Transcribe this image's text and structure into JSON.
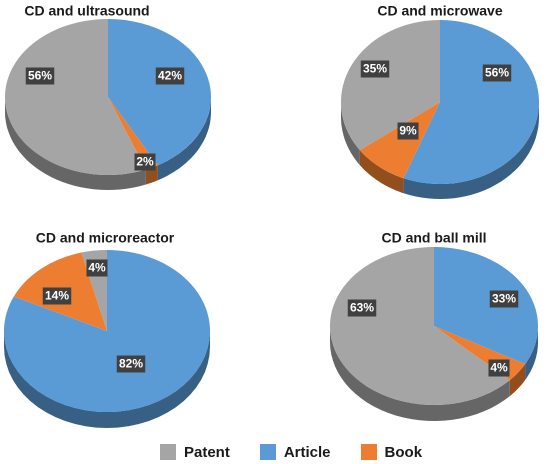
{
  "colors": {
    "patent": "#a5a5a5",
    "article": "#5b9bd5",
    "book": "#ed7d31"
  },
  "legend": [
    {
      "key": "patent",
      "label": "Patent"
    },
    {
      "key": "article",
      "label": "Article"
    },
    {
      "key": "book",
      "label": "Book"
    }
  ],
  "chart_data": [
    {
      "type": "pie",
      "title": "CD and ultrasound",
      "categories": [
        "Article",
        "Book",
        "Patent"
      ],
      "values": [
        42,
        2,
        56
      ],
      "data_labels": [
        "42%",
        "2%",
        "56%"
      ]
    },
    {
      "type": "pie",
      "title": "CD and microwave",
      "categories": [
        "Article",
        "Book",
        "Patent"
      ],
      "values": [
        56,
        9,
        35
      ],
      "data_labels": [
        "56%",
        "9%",
        "35%"
      ]
    },
    {
      "type": "pie",
      "title": "CD and microreactor",
      "categories": [
        "Article",
        "Book",
        "Patent"
      ],
      "values": [
        82,
        14,
        4
      ],
      "data_labels": [
        "82%",
        "14%",
        "4%"
      ]
    },
    {
      "type": "pie",
      "title": "CD and ball mill",
      "categories": [
        "Article",
        "Book",
        "Patent"
      ],
      "values": [
        33,
        4,
        63
      ],
      "data_labels": [
        "33%",
        "4%",
        "63%"
      ]
    }
  ]
}
